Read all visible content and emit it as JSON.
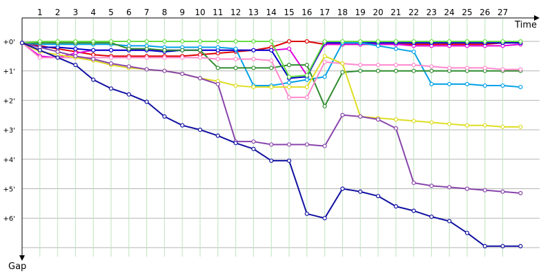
{
  "chart_data": {
    "type": "line",
    "xlabel": "Time",
    "ylabel": "Gap",
    "x_ticks": [
      1,
      2,
      3,
      4,
      5,
      6,
      7,
      8,
      9,
      10,
      11,
      12,
      13,
      14,
      15,
      16,
      17,
      18,
      19,
      20,
      21,
      22,
      23,
      24,
      25,
      26,
      27
    ],
    "y_ticks": [
      "+0'",
      "+1'",
      "+2'",
      "+3'",
      "+4'",
      "+5'",
      "+6'"
    ],
    "y_tick_values": [
      0,
      1,
      2,
      3,
      4,
      5,
      6
    ],
    "xlim": [
      0,
      29
    ],
    "ylim": [
      0,
      7
    ],
    "grid": true,
    "legend": "none",
    "colors": {
      "grid_vertical": "#bde3bd",
      "grid_horizontal": "#b4b4b4",
      "axis": "#000000",
      "point_fill": "#ffffff"
    },
    "series": [
      {
        "color": "#dd0000",
        "values": [
          0.05,
          0.15,
          0.25,
          0.35,
          0.45,
          0.5,
          0.5,
          0.5,
          0.5,
          0.5,
          0.45,
          0.4,
          0.35,
          0.3,
          0.2,
          0.0,
          0.0,
          0.1,
          0.1,
          0.1,
          0.1,
          0.1,
          0.1,
          0.1,
          0.1,
          0.1,
          0.1,
          0.05,
          0.05
        ]
      },
      {
        "color": "#e000e0",
        "values": [
          0.05,
          0.5,
          0.55,
          0.4,
          0.3,
          0.3,
          0.3,
          0.3,
          0.3,
          0.3,
          0.3,
          0.3,
          0.3,
          0.3,
          0.3,
          0.25,
          1.15,
          0.1,
          0.1,
          0.1,
          0.1,
          0.1,
          0.15,
          0.15,
          0.15,
          0.15,
          0.15,
          0.15,
          0.1
        ]
      },
      {
        "color": "#0000cc",
        "values": [
          0.05,
          0.2,
          0.2,
          0.25,
          0.3,
          0.3,
          0.3,
          0.3,
          0.35,
          0.3,
          0.3,
          0.3,
          0.3,
          0.3,
          0.3,
          1.25,
          1.2,
          0.05,
          0.05,
          0.05,
          0.05,
          0.05,
          0.05,
          0.05,
          0.05,
          0.05,
          0.05,
          0.05,
          0.05
        ]
      },
      {
        "color": "#00a0e8",
        "values": [
          0.05,
          0.1,
          0.1,
          0.1,
          0.1,
          0.1,
          0.15,
          0.15,
          0.2,
          0.2,
          0.2,
          0.2,
          0.25,
          1.5,
          1.5,
          1.4,
          1.3,
          1.2,
          0.05,
          0.05,
          0.15,
          0.25,
          0.35,
          1.45,
          1.45,
          1.45,
          1.5,
          1.5,
          1.55
        ]
      },
      {
        "color": "#2e8b2e",
        "values": [
          0.05,
          0.05,
          0.05,
          0.05,
          0.05,
          0.05,
          0.25,
          0.25,
          0.3,
          0.3,
          0.3,
          0.9,
          0.9,
          0.9,
          0.9,
          0.8,
          0.8,
          2.2,
          1.05,
          1.0,
          1.0,
          1.0,
          1.0,
          1.0,
          1.0,
          1.0,
          1.0,
          1.0,
          1.0
        ]
      },
      {
        "color": "#66dd44",
        "values": [
          0.05,
          0.0,
          0.0,
          0.0,
          0.0,
          0.0,
          0.0,
          0.0,
          0.0,
          0.0,
          0.0,
          0.0,
          0.0,
          0.0,
          0.0,
          1.2,
          1.15,
          0.0,
          0.0,
          0.0,
          0.0,
          0.0,
          0.0,
          0.0,
          0.0,
          0.0,
          0.0,
          0.0,
          0.0
        ]
      },
      {
        "color": "#ff88cc",
        "values": [
          0.05,
          0.55,
          0.55,
          0.55,
          0.55,
          0.55,
          0.55,
          0.55,
          0.55,
          0.55,
          0.55,
          0.6,
          0.6,
          0.6,
          0.65,
          1.9,
          1.9,
          0.7,
          0.75,
          0.8,
          0.8,
          0.8,
          0.8,
          0.85,
          0.9,
          0.9,
          0.9,
          0.95,
          0.95
        ]
      },
      {
        "color": "#dddd22",
        "values": [
          0.05,
          0.35,
          0.45,
          0.55,
          0.65,
          0.8,
          0.9,
          0.95,
          1.0,
          1.1,
          1.25,
          1.35,
          1.5,
          1.55,
          1.55,
          1.55,
          1.55,
          0.5,
          0.75,
          2.55,
          2.6,
          2.65,
          2.7,
          2.75,
          2.8,
          2.85,
          2.85,
          2.9,
          2.9
        ]
      },
      {
        "color": "#8844aa",
        "values": [
          0.05,
          0.2,
          0.35,
          0.5,
          0.6,
          0.75,
          0.85,
          0.95,
          1.0,
          1.1,
          1.25,
          1.45,
          3.4,
          3.4,
          3.5,
          3.5,
          3.5,
          3.55,
          2.5,
          2.55,
          2.65,
          2.95,
          4.8,
          4.9,
          4.95,
          5.0,
          5.05,
          5.1,
          5.15
        ]
      },
      {
        "color": "#0f0fa0",
        "values": [
          0.05,
          0.3,
          0.55,
          0.8,
          1.3,
          1.6,
          1.8,
          2.05,
          2.55,
          2.85,
          3.0,
          3.2,
          3.45,
          3.65,
          4.05,
          4.05,
          5.85,
          6.0,
          5.0,
          5.1,
          5.25,
          5.6,
          5.75,
          5.95,
          6.1,
          6.5,
          6.95,
          6.95,
          6.95
        ]
      }
    ]
  }
}
